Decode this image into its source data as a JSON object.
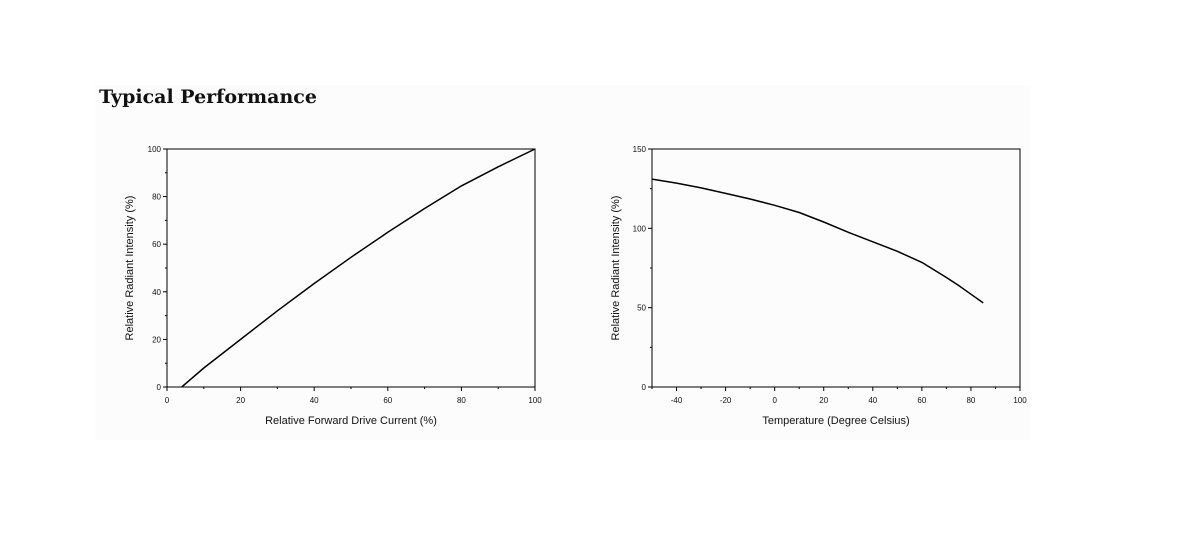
{
  "page": {
    "title": "Typical Performance"
  },
  "chart_data": [
    {
      "type": "line",
      "xlabel": "Relative Forward Drive Current (%)",
      "ylabel": "Relative Radiant Intensity (%)",
      "xlim": [
        0,
        100
      ],
      "ylim": [
        0,
        100
      ],
      "xticks": [
        0,
        20,
        40,
        60,
        80,
        100
      ],
      "yticks": [
        0,
        20,
        40,
        60,
        80,
        100
      ],
      "grid": false,
      "series": [
        {
          "x": [
            4,
            10,
            20,
            30,
            40,
            50,
            60,
            70,
            80,
            90,
            100
          ],
          "y": [
            0,
            8,
            20,
            32,
            43.5,
            54.5,
            65,
            75,
            84.5,
            92.5,
            100
          ]
        }
      ]
    },
    {
      "type": "line",
      "xlabel": "Temperature (Degree Celsius)",
      "ylabel": "Relative Radiant Intensity (%)",
      "xlim": [
        -50,
        100
      ],
      "ylim": [
        0,
        150
      ],
      "xticks": [
        -40,
        -20,
        0,
        20,
        40,
        60,
        80,
        100
      ],
      "yticks": [
        0,
        50,
        100,
        150
      ],
      "grid": false,
      "series": [
        {
          "x": [
            -50,
            -40,
            -30,
            -20,
            -10,
            0,
            10,
            20,
            30,
            40,
            50,
            60,
            70,
            75,
            80,
            85
          ],
          "y": [
            131,
            128.5,
            125.5,
            122,
            118.5,
            114.5,
            110,
            104,
            97.5,
            91.5,
            85.5,
            78.5,
            69,
            64,
            58.5,
            53
          ]
        }
      ]
    }
  ]
}
